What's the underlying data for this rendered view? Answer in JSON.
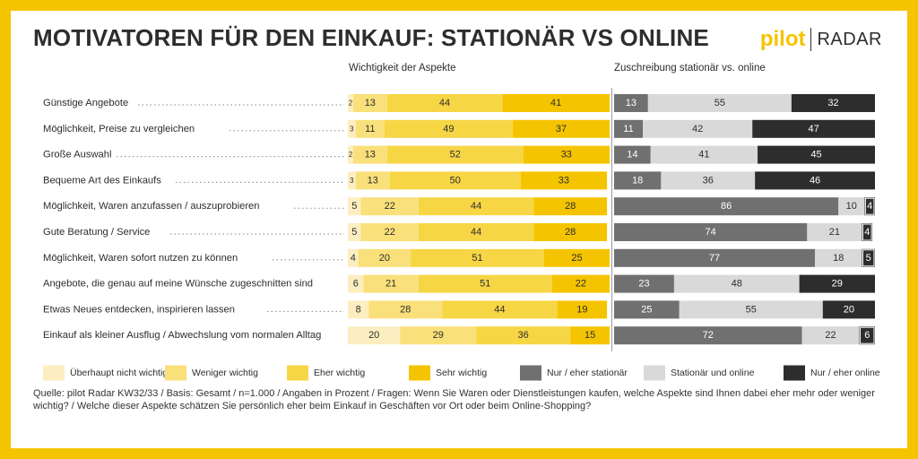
{
  "title": "MOTIVATOREN FÜR DEN EINKAUF: STATIONÄR VS ONLINE",
  "logo": {
    "part1": "pilot",
    "part2": "RADAR"
  },
  "colors": {
    "frame": "#F5C400",
    "importance": [
      "#FCEEC0",
      "#F9E07A",
      "#F7D646",
      "#F5C400"
    ],
    "attribution": [
      "#707070",
      "#D9D9D9",
      "#2D2D2D"
    ]
  },
  "source": "Quelle: pilot Radar KW32/33 / Basis: Gesamt  / n=1.000 / Angaben in Prozent / Fragen: Wenn Sie Waren oder Dienstleistungen kaufen, welche Aspekte sind Ihnen dabei eher mehr oder weniger wichtig? / Welche dieser Aspekte schätzen Sie persönlich eher beim Einkauf in Geschäften vor Ort oder beim Online-Shopping?",
  "chart_data": [
    {
      "type": "bar",
      "orientation": "horizontal",
      "stacked": true,
      "title": "Wichtigkeit der Aspekte",
      "unit": "%",
      "categories": [
        "Günstige Angebote",
        "Möglichkeit, Preise zu vergleichen",
        "Große Auswahl",
        "Bequeme Art des Einkaufs",
        "Möglichkeit, Waren anzufassen / auszuprobieren",
        "Gute Beratung / Service",
        "Möglichkeit, Waren sofort nutzen zu können",
        "Angebote, die genau auf meine Wünsche zugeschnitten sind",
        "Etwas Neues entdecken, inspirieren lassen",
        "Einkauf als kleiner Ausflug / Abwechslung vom normalen Alltag"
      ],
      "series": [
        {
          "name": "Überhaupt nicht wichtig",
          "values": [
            2,
            3,
            2,
            3,
            5,
            5,
            4,
            6,
            8,
            20
          ]
        },
        {
          "name": "Weniger wichtig",
          "values": [
            13,
            11,
            13,
            13,
            22,
            22,
            20,
            21,
            28,
            29
          ]
        },
        {
          "name": "Eher wichtig",
          "values": [
            44,
            49,
            52,
            50,
            44,
            44,
            51,
            51,
            44,
            36
          ]
        },
        {
          "name": "Sehr wichtig",
          "values": [
            41,
            37,
            33,
            33,
            28,
            28,
            25,
            22,
            19,
            15
          ]
        }
      ]
    },
    {
      "type": "bar",
      "orientation": "horizontal",
      "stacked": true,
      "title": "Zuschreibung stationär vs. online",
      "unit": "%",
      "categories": [
        "Günstige Angebote",
        "Möglichkeit, Preise zu vergleichen",
        "Große Auswahl",
        "Bequeme Art des Einkaufs",
        "Möglichkeit, Waren anzufassen / auszuprobieren",
        "Gute Beratung / Service",
        "Möglichkeit, Waren sofort nutzen zu können",
        "Angebote, die genau auf meine Wünsche zugeschnitten sind",
        "Etwas Neues entdecken, inspirieren lassen",
        "Einkauf als kleiner Ausflug / Abwechslung vom normalen Alltag"
      ],
      "series": [
        {
          "name": "Nur / eher stationär",
          "values": [
            13,
            11,
            14,
            18,
            86,
            74,
            77,
            23,
            25,
            72
          ]
        },
        {
          "name": "Stationär und online",
          "values": [
            55,
            42,
            41,
            36,
            10,
            21,
            18,
            48,
            55,
            22
          ]
        },
        {
          "name": "Nur / eher online",
          "values": [
            32,
            47,
            45,
            46,
            4,
            4,
            5,
            29,
            20,
            6
          ]
        }
      ]
    }
  ]
}
